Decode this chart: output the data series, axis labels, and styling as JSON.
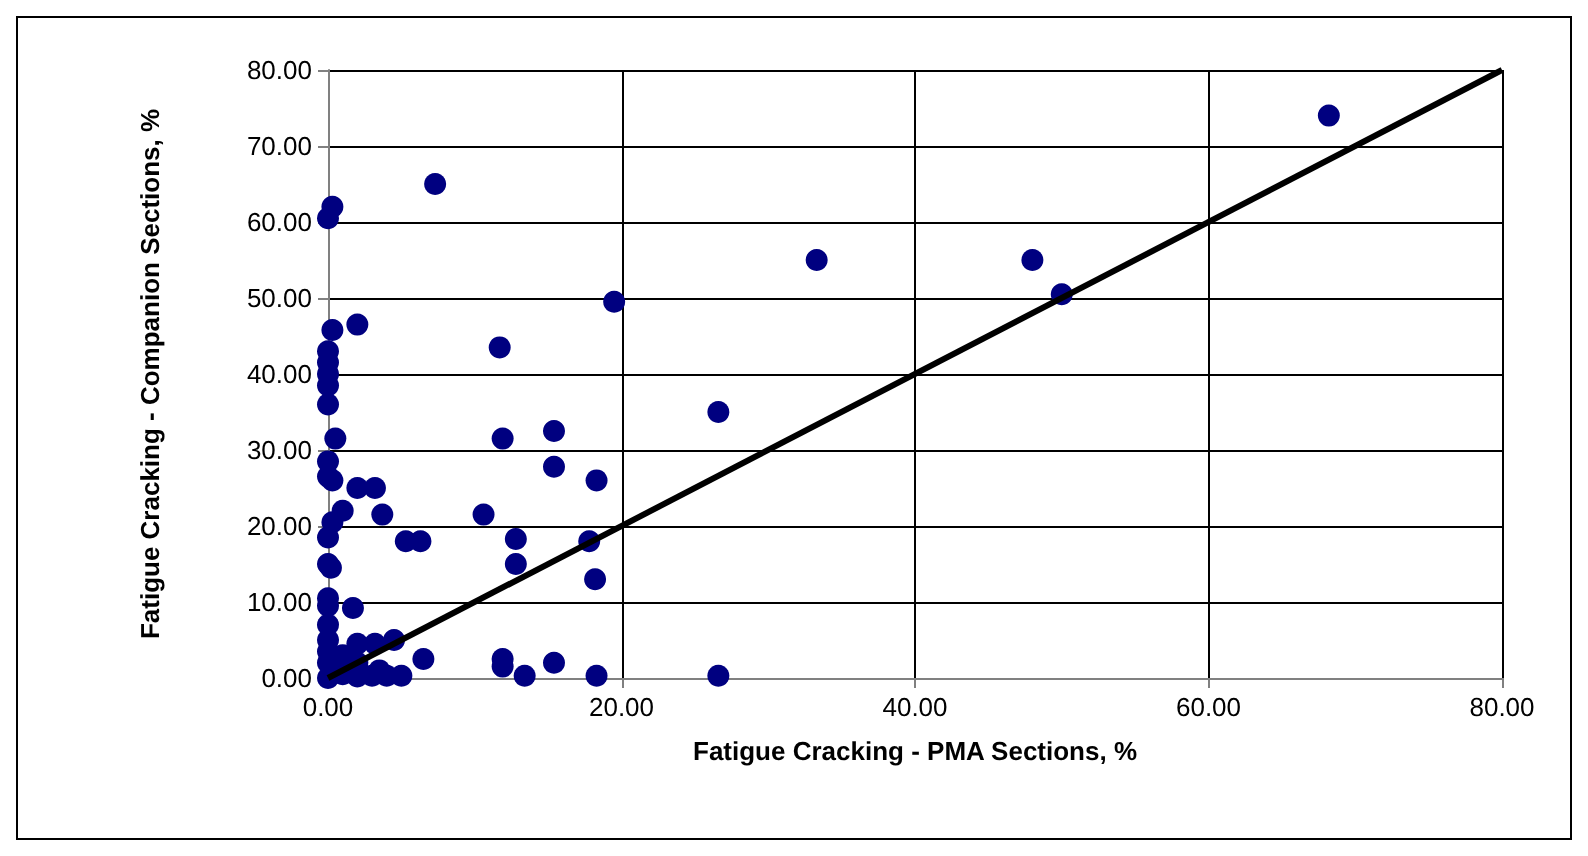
{
  "chart_data": {
    "type": "scatter",
    "xlabel": "Fatigue Cracking - PMA Sections, %",
    "ylabel": "Fatigue Cracking - Companion Sections, %",
    "xlim": [
      0,
      80
    ],
    "ylim": [
      0,
      80
    ],
    "xticks": [
      {
        "value": 0,
        "label": "0.00"
      },
      {
        "value": 20,
        "label": "20.00"
      },
      {
        "value": 40,
        "label": "40.00"
      },
      {
        "value": 60,
        "label": "60.00"
      },
      {
        "value": 80,
        "label": "80.00"
      }
    ],
    "yticks": [
      {
        "value": 0,
        "label": "0.00"
      },
      {
        "value": 10,
        "label": "10.00"
      },
      {
        "value": 20,
        "label": "20.00"
      },
      {
        "value": 30,
        "label": "30.00"
      },
      {
        "value": 40,
        "label": "40.00"
      },
      {
        "value": 50,
        "label": "50.00"
      },
      {
        "value": 60,
        "label": "60.00"
      },
      {
        "value": 70,
        "label": "70.00"
      },
      {
        "value": 80,
        "label": "80.00"
      }
    ],
    "grid": true,
    "series": [
      {
        "color": "#000080",
        "marker": "circle",
        "x": [
          68.2,
          33.3,
          48,
          50,
          19.5,
          26.6,
          7.3,
          0,
          0.3,
          0.3,
          2,
          11.7,
          0,
          0,
          0,
          0,
          0,
          0.5,
          0,
          0,
          0.3,
          11.9,
          15.4,
          15.4,
          18.3,
          2,
          3.2,
          3.7,
          10.6,
          0.3,
          1,
          0,
          5.3,
          6.3,
          12.8,
          17.8,
          12.8,
          18.2,
          0,
          0.2,
          0,
          0,
          1.7,
          0,
          0,
          0,
          0,
          0,
          1,
          2,
          2,
          3.2,
          4.5,
          6.5,
          11.9,
          11.9,
          15.4,
          13.4,
          18.3,
          26.6,
          5,
          3,
          4,
          1,
          2,
          3.5
        ],
        "values": [
          74,
          55,
          55,
          50.5,
          49.5,
          35,
          65,
          60.5,
          62,
          45.8,
          46.5,
          43.5,
          43,
          41.5,
          40,
          38.5,
          36,
          31.5,
          28.5,
          26.5,
          26,
          31.5,
          32.5,
          27.8,
          26,
          25,
          25,
          21.5,
          21.5,
          20.5,
          22,
          18.5,
          18,
          18,
          18.3,
          18,
          15,
          13,
          15,
          14.5,
          10.5,
          9.5,
          9.2,
          7,
          5,
          3.5,
          2,
          0,
          0.5,
          2,
          4.5,
          4.5,
          5,
          2.5,
          2.5,
          1.5,
          2,
          0.3,
          0.3,
          0.3,
          0.3,
          0.3,
          0.3,
          3,
          0.2,
          1
        ]
      },
      {
        "type": "line",
        "color": "#000000",
        "marker": "none",
        "line_style": "solid",
        "x": [
          0,
          80
        ],
        "values": [
          0,
          80
        ]
      }
    ]
  }
}
